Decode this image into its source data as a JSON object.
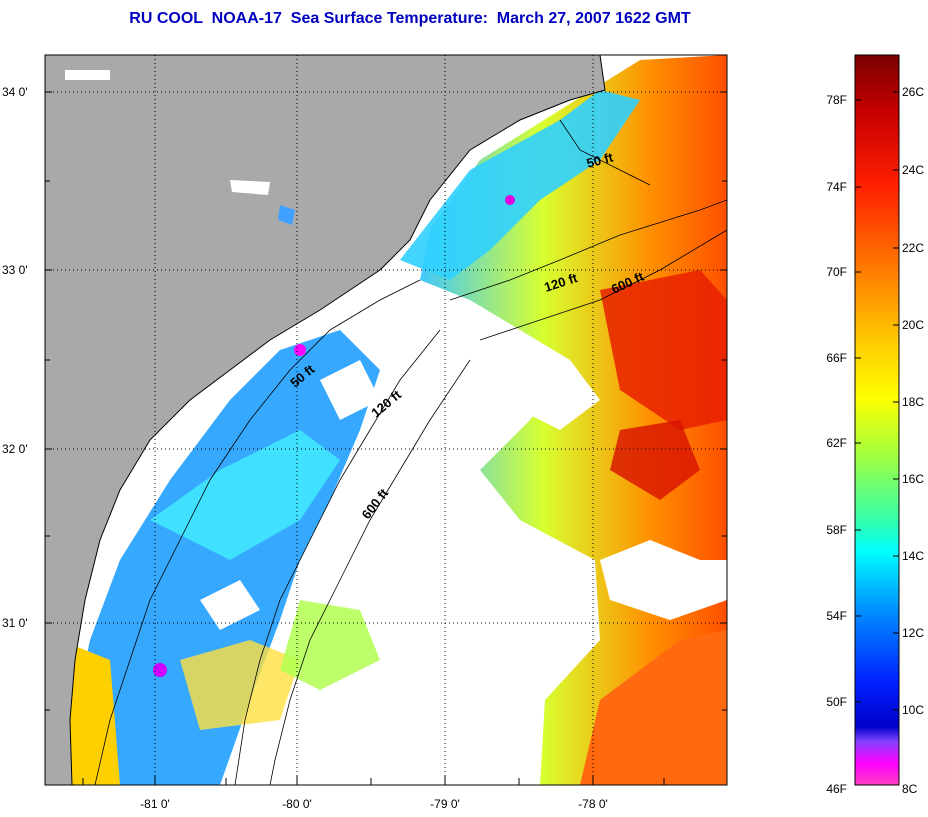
{
  "title": "RU COOL  NOAA-17  Sea Surface Temperature:  March 27, 2007 1622 GMT",
  "map": {
    "lat_ticks": [
      "34 0'",
      "33 0'",
      "32 0'",
      "31 0'"
    ],
    "lon_ticks": [
      "-81 0'",
      "-80 0'",
      "-79 0'",
      "-78 0'"
    ],
    "contour_labels": [
      "50 ft",
      "120 ft",
      "600 ft",
      "50 ft",
      "120 ft",
      "600 ft"
    ],
    "colors": {
      "land": "#a9a9a9",
      "cloud_mask": "#ffffff",
      "grid": "#000000"
    }
  },
  "colorbar": {
    "fahrenheit_labels": [
      "78F",
      "74F",
      "70F",
      "66F",
      "62F",
      "58F",
      "54F",
      "50F",
      "46F"
    ],
    "celsius_labels": [
      "26C",
      "24C",
      "22C",
      "20C",
      "18C",
      "16C",
      "14C",
      "12C",
      "10C",
      "8C"
    ],
    "colors_top_to_bottom": [
      "#7a0000",
      "#c80000",
      "#ff2000",
      "#ff6a00",
      "#ffb000",
      "#ffff00",
      "#b4ff40",
      "#40ffa0",
      "#00ffff",
      "#0090ff",
      "#0020ff",
      "#0000c8",
      "#8040ff",
      "#ff00ff",
      "#ff30c0"
    ]
  }
}
